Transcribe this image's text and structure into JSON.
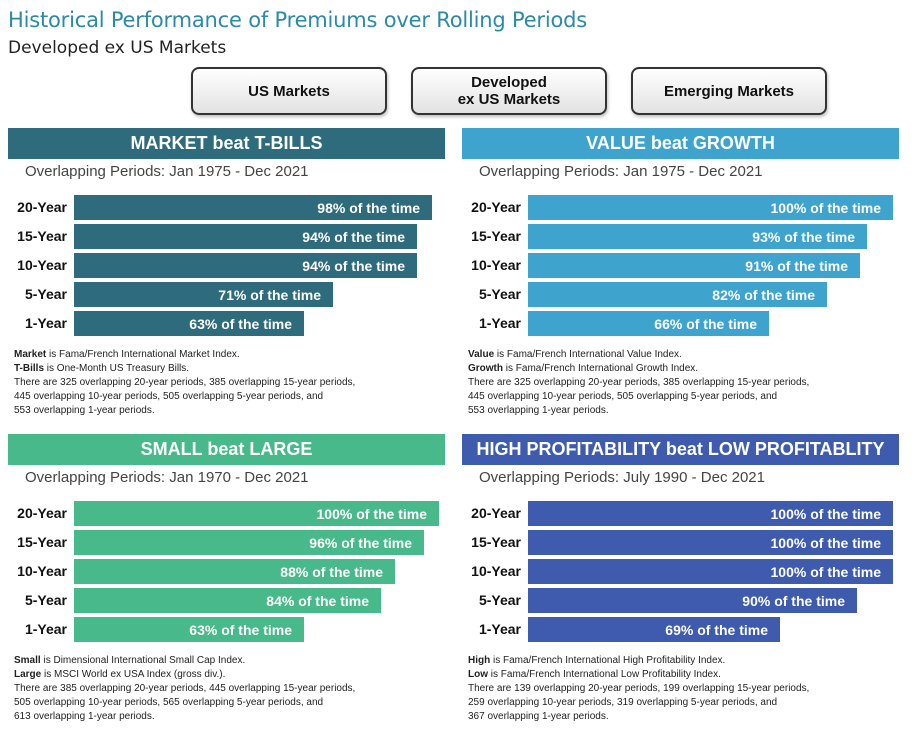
{
  "title": "Historical Performance of Premiums over Rolling Periods",
  "subtitle": "Developed ex US Markets",
  "tabs": [
    {
      "line1": "US Markets",
      "line2": ""
    },
    {
      "line1": "Developed",
      "line2": "ex US Markets"
    },
    {
      "line1": "Emerging Markets",
      "line2": ""
    }
  ],
  "colors": {
    "title": "#2a8aa8",
    "market": "#2e6b7d",
    "value": "#3ea4cd",
    "small": "#48b98b",
    "profitability": "#3e5bae"
  },
  "chart_data": [
    {
      "type": "bar",
      "title": "MARKET beat T-BILLS",
      "subtitle": "Overlapping Periods: Jan 1975 - Dec 2021",
      "categories": [
        "20-Year",
        "15-Year",
        "10-Year",
        "5-Year",
        "1-Year"
      ],
      "values": [
        98,
        94,
        94,
        71,
        63
      ],
      "labels": [
        "98% of the time",
        "94% of the time",
        "94% of the time",
        "71% of the time",
        "63% of the time"
      ],
      "ylim": [
        0,
        100
      ],
      "color": "#2e6b7d",
      "notes": [
        {
          "bold": "Market",
          "text": " is Fama/French International Market Index."
        },
        {
          "bold": "T-Bills",
          "text": " is One-Month US Treasury Bills."
        },
        {
          "bold": "",
          "text": "There are 325 overlapping 20-year periods, 385 overlapping 15-year periods,"
        },
        {
          "bold": "",
          "text": "445 overlapping 10-year periods, 505 overlapping 5-year periods, and"
        },
        {
          "bold": "",
          "text": "553 overlapping 1-year periods."
        }
      ]
    },
    {
      "type": "bar",
      "title": "VALUE beat GROWTH",
      "subtitle": "Overlapping Periods: Jan 1975 - Dec 2021",
      "categories": [
        "20-Year",
        "15-Year",
        "10-Year",
        "5-Year",
        "1-Year"
      ],
      "values": [
        100,
        93,
        91,
        82,
        66
      ],
      "labels": [
        "100% of the time",
        "93% of the time",
        "91% of the time",
        "82% of the time",
        "66% of the time"
      ],
      "ylim": [
        0,
        100
      ],
      "color": "#3ea4cd",
      "notes": [
        {
          "bold": "Value",
          "text": " is Fama/French International Value Index."
        },
        {
          "bold": "Growth",
          "text": " is Fama/French International Growth Index."
        },
        {
          "bold": "",
          "text": "There are 325 overlapping 20-year periods, 385 overlapping 15-year periods,"
        },
        {
          "bold": "",
          "text": "445 overlapping 10-year periods, 505 overlapping 5-year periods, and"
        },
        {
          "bold": "",
          "text": "553 overlapping 1-year periods."
        }
      ]
    },
    {
      "type": "bar",
      "title": "SMALL beat LARGE",
      "subtitle": "Overlapping Periods: Jan 1970 - Dec 2021",
      "categories": [
        "20-Year",
        "15-Year",
        "10-Year",
        "5-Year",
        "1-Year"
      ],
      "values": [
        100,
        96,
        88,
        84,
        63
      ],
      "labels": [
        "100% of the time",
        "96% of the time",
        "88% of the time",
        "84% of the time",
        "63% of the time"
      ],
      "ylim": [
        0,
        100
      ],
      "color": "#48b98b",
      "notes": [
        {
          "bold": "Small",
          "text": " is Dimensional International Small Cap Index."
        },
        {
          "bold": "Large",
          "text": " is MSCI World ex USA Index (gross div.)."
        },
        {
          "bold": "",
          "text": "There are 385 overlapping 20-year periods, 445 overlapping 15-year periods,"
        },
        {
          "bold": "",
          "text": "505 overlapping 10-year periods, 565 overlapping 5-year periods, and"
        },
        {
          "bold": "",
          "text": "613 overlapping 1-year periods."
        }
      ]
    },
    {
      "type": "bar",
      "title": "HIGH PROFITABILITY beat LOW PROFITABLITY",
      "subtitle": "Overlapping Periods: July 1990 - Dec 2021",
      "categories": [
        "20-Year",
        "15-Year",
        "10-Year",
        "5-Year",
        "1-Year"
      ],
      "values": [
        100,
        100,
        100,
        90,
        69
      ],
      "labels": [
        "100% of the time",
        "100% of the time",
        "100% of the time",
        "90% of the time",
        "69% of the time"
      ],
      "ylim": [
        0,
        100
      ],
      "color": "#3e5bae",
      "notes": [
        {
          "bold": "High",
          "text": " is Fama/French International High Profitability Index."
        },
        {
          "bold": "Low",
          "text": " is Fama/French International Low Profitability Index."
        },
        {
          "bold": "",
          "text": "There are 139 overlapping 20-year periods, 199 overlapping 15-year periods,"
        },
        {
          "bold": "",
          "text": "259 overlapping 10-year periods, 319 overlapping 5-year periods, and"
        },
        {
          "bold": "",
          "text": "367 overlapping 1-year periods."
        }
      ]
    }
  ]
}
